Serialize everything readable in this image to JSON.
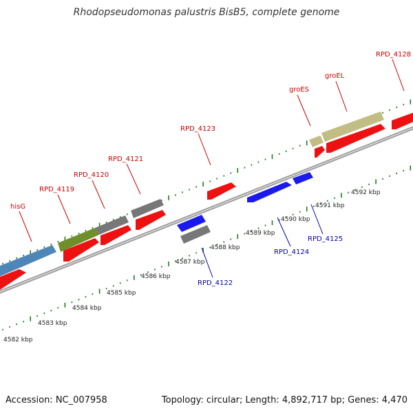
{
  "title": "Rhodopseudomonas palustris BisB5, complete genome",
  "accession": "Accession: NC_007958",
  "summary": "Topology: circular; Length: 4,892,717 bp; Genes: 4,470",
  "colors": {
    "red": "#ee1111",
    "blue": "#1a1aee",
    "gray": "#777777",
    "olive": "#6e8f2a",
    "steelblue": "#4f86b8",
    "khaki": "#c2bd84",
    "label_red": "#cc0000",
    "label_blue": "#0000aa",
    "tick_green": "#1e7a1e",
    "axis": "#999999"
  },
  "kbp_labels": [
    "4582 kbp",
    "4583 kbp",
    "4584 kbp",
    "4585 kbp",
    "4586 kbp",
    "4587 kbp",
    "4588 kbp",
    "4589 kbp",
    "4590 kbp",
    "4591 kbp",
    "4592 kbp"
  ],
  "upper_genes": [
    {
      "label": "hisG",
      "color": "label_red"
    },
    {
      "label": "RPD_4119",
      "color": "label_red"
    },
    {
      "label": "RPD_4120",
      "color": "label_red"
    },
    {
      "label": "RPD_4121",
      "color": "label_red"
    },
    {
      "label": "RPD_4123",
      "color": "label_red"
    },
    {
      "label": "groES",
      "color": "label_red"
    },
    {
      "label": "groEL",
      "color": "label_red"
    },
    {
      "label": "RPD_4128",
      "color": "label_red"
    }
  ],
  "lower_genes": [
    {
      "label": "RPD_4122",
      "color": "label_blue"
    },
    {
      "label": "RPD_4124",
      "color": "label_blue"
    },
    {
      "label": "RPD_4125",
      "color": "label_blue"
    }
  ]
}
